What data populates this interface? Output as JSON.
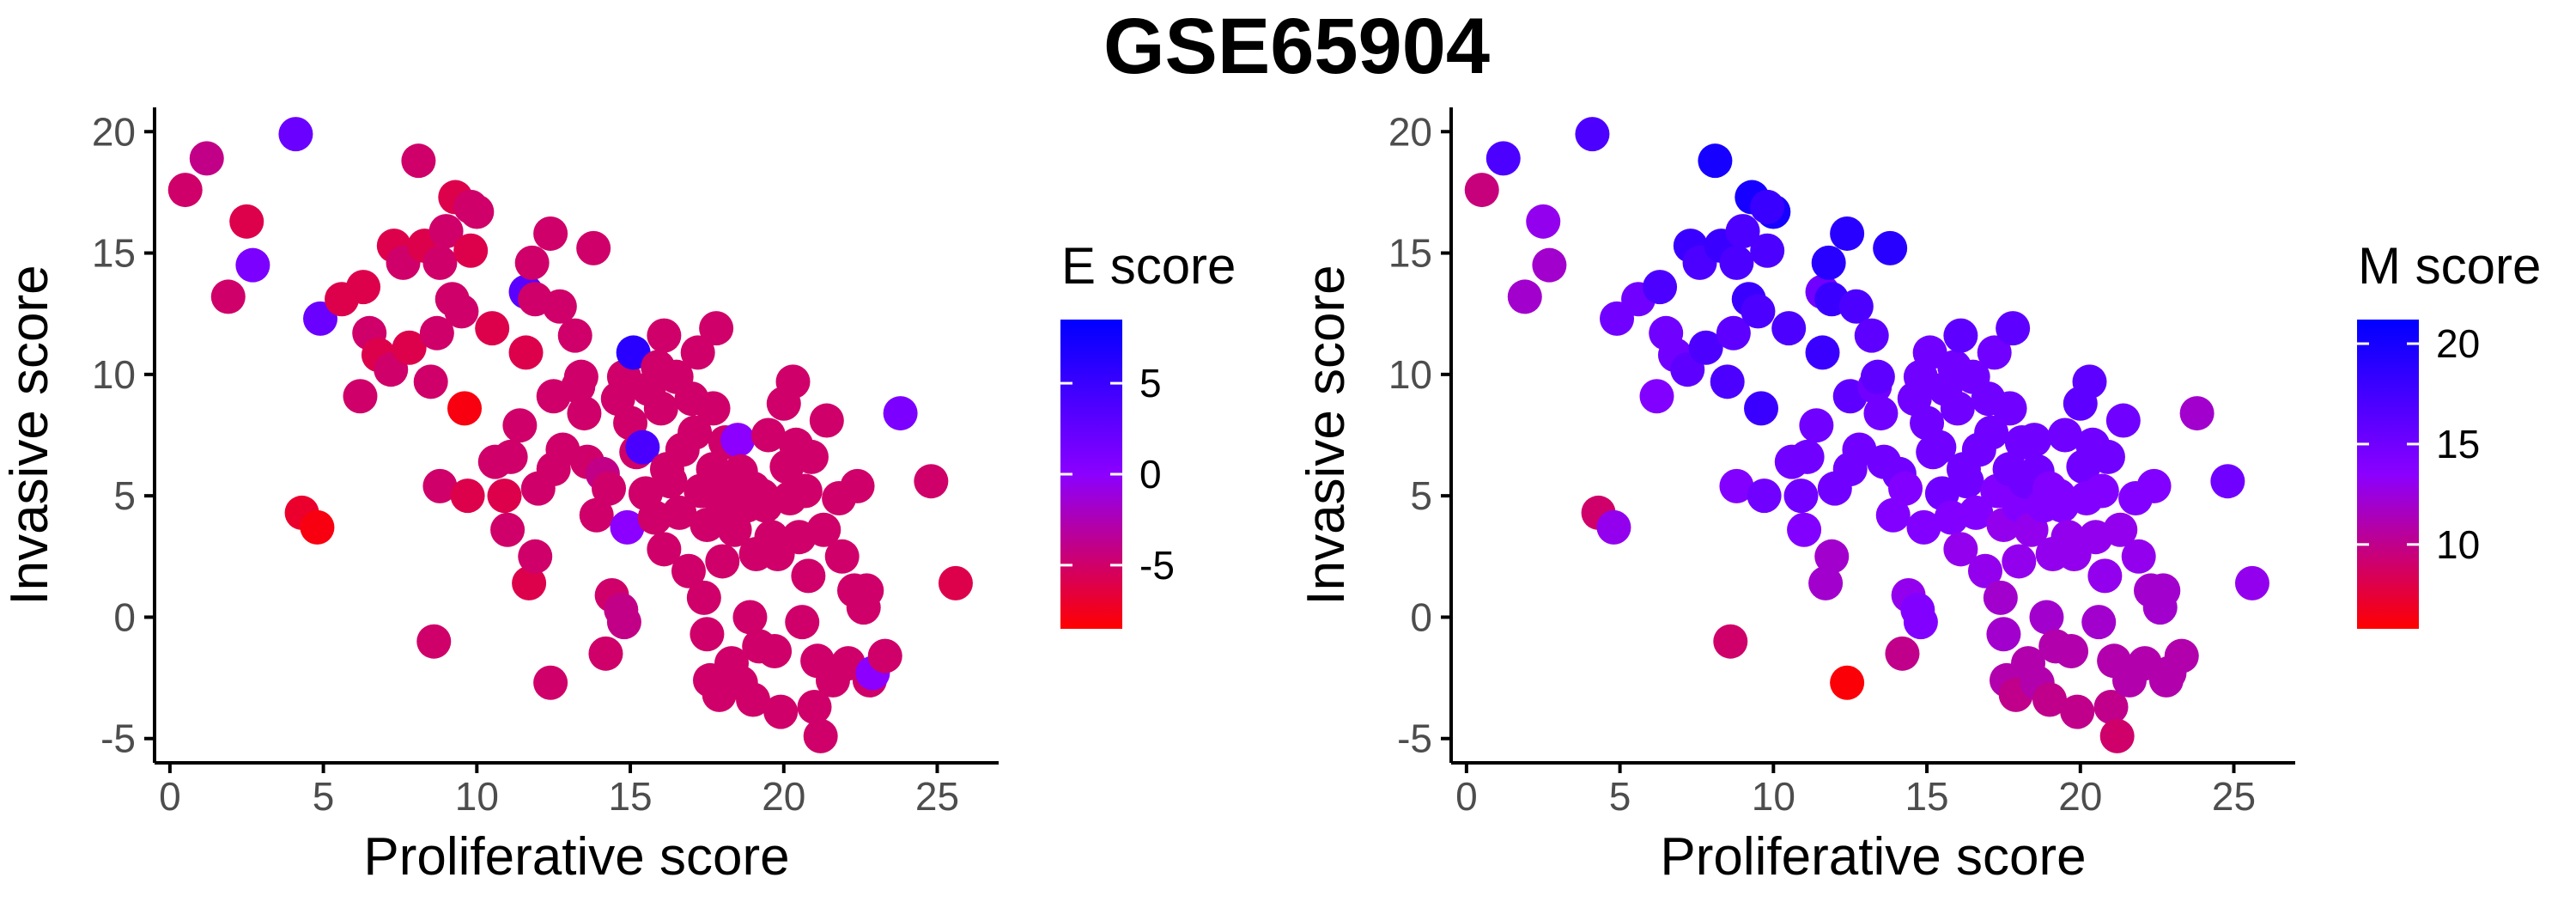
{
  "title": "GSE65904",
  "colors": {
    "low": "#ff0000",
    "mid": "#8b00ff",
    "high": "#0000ff",
    "axis": "#000000",
    "tick_text": "#4d4d4d"
  },
  "chart_data": [
    {
      "type": "scatter",
      "xlabel": "Proliferative score",
      "ylabel": "Invasive score",
      "xlim": [
        -0.5,
        27
      ],
      "ylim": [
        -6,
        21
      ],
      "xticks": [
        0,
        5,
        10,
        15,
        20,
        25
      ],
      "yticks": [
        -5,
        0,
        5,
        10,
        15,
        20
      ],
      "color_var": "e",
      "legend": {
        "title": "E score",
        "position": "right",
        "ticks": [
          5,
          0,
          -5
        ],
        "range": [
          -8.5,
          8.5
        ]
      }
    },
    {
      "type": "scatter",
      "xlabel": "Proliferative score",
      "ylabel": "Invasive score",
      "xlim": [
        -0.5,
        27
      ],
      "ylim": [
        -6,
        21
      ],
      "xticks": [
        0,
        5,
        10,
        15,
        20,
        25
      ],
      "yticks": [
        -5,
        0,
        5,
        10,
        15,
        20
      ],
      "color_var": "m",
      "legend": {
        "title": "M score",
        "position": "right",
        "ticks": [
          20,
          15,
          10
        ],
        "range": [
          5.8,
          21.2
        ]
      }
    }
  ],
  "points": [
    {
      "x": 0.5,
      "y": 17.6,
      "e": -5,
      "m": 9.5
    },
    {
      "x": 1.2,
      "y": 18.9,
      "e": -4,
      "m": 17
    },
    {
      "x": 1.9,
      "y": 13.2,
      "e": -5,
      "m": 12
    },
    {
      "x": 2.5,
      "y": 16.3,
      "e": -6,
      "m": 13
    },
    {
      "x": 2.7,
      "y": 14.5,
      "e": 1,
      "m": 12
    },
    {
      "x": 4.1,
      "y": 19.9,
      "e": 2,
      "m": 17
    },
    {
      "x": 4.9,
      "y": 12.3,
      "e": 2,
      "m": 15
    },
    {
      "x": 4.3,
      "y": 4.3,
      "e": -7,
      "m": 9
    },
    {
      "x": 4.8,
      "y": 3.7,
      "e": -8,
      "m": 13
    },
    {
      "x": 5.6,
      "y": 13.1,
      "e": -6,
      "m": 15
    },
    {
      "x": 6.3,
      "y": 13.6,
      "e": -6,
      "m": 17
    },
    {
      "x": 6.5,
      "y": 11.7,
      "e": -5,
      "m": 15
    },
    {
      "x": 6.8,
      "y": 10.8,
      "e": -6,
      "m": 15
    },
    {
      "x": 6.2,
      "y": 9.1,
      "e": -5,
      "m": 14
    },
    {
      "x": 7.3,
      "y": 15.3,
      "e": -6,
      "m": 18
    },
    {
      "x": 7.6,
      "y": 14.6,
      "e": -5,
      "m": 17
    },
    {
      "x": 7.2,
      "y": 10.2,
      "e": -5,
      "m": 16
    },
    {
      "x": 7.8,
      "y": 11.1,
      "e": -6,
      "m": 17
    },
    {
      "x": 8.1,
      "y": 18.8,
      "e": -5,
      "m": 20
    },
    {
      "x": 8.3,
      "y": 15.3,
      "e": -6,
      "m": 18
    },
    {
      "x": 8.5,
      "y": 9.7,
      "e": -5,
      "m": 17
    },
    {
      "x": 8.7,
      "y": 11.7,
      "e": -5,
      "m": 16
    },
    {
      "x": 8.8,
      "y": 14.6,
      "e": -5,
      "m": 17
    },
    {
      "x": 9.0,
      "y": 15.9,
      "e": -5,
      "m": 17
    },
    {
      "x": 9.2,
      "y": 13.1,
      "e": -5,
      "m": 18
    },
    {
      "x": 9.3,
      "y": 17.3,
      "e": -6,
      "m": 20
    },
    {
      "x": 9.5,
      "y": 12.6,
      "e": -5,
      "m": 17
    },
    {
      "x": 9.6,
      "y": 8.6,
      "e": -8,
      "m": 18
    },
    {
      "x": 9.8,
      "y": 15.1,
      "e": -6,
      "m": 17
    },
    {
      "x": 10.0,
      "y": 16.7,
      "e": -5,
      "m": 20
    },
    {
      "x": 9.8,
      "y": 16.9,
      "e": -5,
      "m": 18
    },
    {
      "x": 8.8,
      "y": 5.4,
      "e": -5,
      "m": 14
    },
    {
      "x": 9.7,
      "y": 5.0,
      "e": -6,
      "m": 15
    },
    {
      "x": 8.6,
      "y": -1.0,
      "e": -5,
      "m": 9
    },
    {
      "x": 10.5,
      "y": 11.9,
      "e": -6,
      "m": 17
    },
    {
      "x": 10.6,
      "y": 6.4,
      "e": -5,
      "m": 15
    },
    {
      "x": 10.9,
      "y": 5.0,
      "e": -6,
      "m": 15
    },
    {
      "x": 11.1,
      "y": 6.6,
      "e": -5,
      "m": 15
    },
    {
      "x": 11.0,
      "y": 3.6,
      "e": -5,
      "m": 14
    },
    {
      "x": 11.4,
      "y": 7.9,
      "e": -5,
      "m": 15
    },
    {
      "x": 11.6,
      "y": 13.4,
      "e": 3,
      "m": 15
    },
    {
      "x": 11.8,
      "y": 14.6,
      "e": -5,
      "m": 19
    },
    {
      "x": 11.6,
      "y": 10.9,
      "e": -6,
      "m": 18
    },
    {
      "x": 11.9,
      "y": 13.1,
      "e": -5,
      "m": 18
    },
    {
      "x": 12.0,
      "y": 5.3,
      "e": -5,
      "m": 15
    },
    {
      "x": 11.7,
      "y": 1.4,
      "e": -6,
      "m": 12
    },
    {
      "x": 11.9,
      "y": 2.5,
      "e": -5,
      "m": 12
    },
    {
      "x": 12.4,
      "y": 15.8,
      "e": -5,
      "m": 19
    },
    {
      "x": 12.7,
      "y": 12.8,
      "e": -5,
      "m": 17
    },
    {
      "x": 12.5,
      "y": 9.1,
      "e": -5,
      "m": 16
    },
    {
      "x": 12.5,
      "y": 6.1,
      "e": -5,
      "m": 15
    },
    {
      "x": 12.8,
      "y": 6.9,
      "e": -5,
      "m": 15
    },
    {
      "x": 12.4,
      "y": -2.7,
      "e": -5,
      "m": 6
    },
    {
      "x": 13.2,
      "y": 11.6,
      "e": -5,
      "m": 16
    },
    {
      "x": 13.3,
      "y": 9.5,
      "e": -5,
      "m": 15
    },
    {
      "x": 13.5,
      "y": 8.4,
      "e": -5,
      "m": 15
    },
    {
      "x": 13.6,
      "y": 6.4,
      "e": -5,
      "m": 15
    },
    {
      "x": 13.4,
      "y": 9.9,
      "e": -5,
      "m": 16
    },
    {
      "x": 13.8,
      "y": 15.2,
      "e": -5,
      "m": 19
    },
    {
      "x": 13.9,
      "y": 4.2,
      "e": -5,
      "m": 14
    },
    {
      "x": 14.1,
      "y": 5.9,
      "e": -4,
      "m": 15
    },
    {
      "x": 14.3,
      "y": 5.3,
      "e": -5,
      "m": 14
    },
    {
      "x": 14.2,
      "y": -1.5,
      "e": -5,
      "m": 10
    },
    {
      "x": 14.4,
      "y": 0.9,
      "e": -5,
      "m": 13
    },
    {
      "x": 14.6,
      "y": 9.0,
      "e": -5,
      "m": 15
    },
    {
      "x": 14.8,
      "y": 9.9,
      "e": -5,
      "m": 15
    },
    {
      "x": 14.7,
      "y": 0.3,
      "e": -4,
      "m": 14
    },
    {
      "x": 14.8,
      "y": -0.2,
      "e": -4,
      "m": 14
    },
    {
      "x": 14.9,
      "y": 3.7,
      "e": 0,
      "m": 14
    },
    {
      "x": 15.1,
      "y": 10.9,
      "e": 6,
      "m": 15
    },
    {
      "x": 15.0,
      "y": 8.0,
      "e": -5,
      "m": 15
    },
    {
      "x": 15.2,
      "y": 6.8,
      "e": -5,
      "m": 15
    },
    {
      "x": 15.4,
      "y": 7.0,
      "e": 4,
      "m": 15
    },
    {
      "x": 15.5,
      "y": 5.1,
      "e": -5,
      "m": 15
    },
    {
      "x": 15.6,
      "y": 9.4,
      "e": -5,
      "m": 15
    },
    {
      "x": 15.8,
      "y": 4.1,
      "e": -5,
      "m": 14
    },
    {
      "x": 15.9,
      "y": 10.3,
      "e": -5,
      "m": 15
    },
    {
      "x": 16.0,
      "y": 8.6,
      "e": -5,
      "m": 15
    },
    {
      "x": 16.1,
      "y": 11.6,
      "e": -5,
      "m": 16
    },
    {
      "x": 16.2,
      "y": 6.1,
      "e": -5,
      "m": 15
    },
    {
      "x": 16.3,
      "y": 5.6,
      "e": -5,
      "m": 15
    },
    {
      "x": 16.1,
      "y": 2.8,
      "e": -5,
      "m": 13
    },
    {
      "x": 16.5,
      "y": 9.9,
      "e": -5,
      "m": 15
    },
    {
      "x": 16.7,
      "y": 6.9,
      "e": -5,
      "m": 15
    },
    {
      "x": 16.6,
      "y": 4.3,
      "e": -5,
      "m": 14
    },
    {
      "x": 16.9,
      "y": 1.9,
      "e": -5,
      "m": 13
    },
    {
      "x": 17.0,
      "y": 9.0,
      "e": -5,
      "m": 15
    },
    {
      "x": 17.2,
      "y": 10.9,
      "e": -5,
      "m": 15
    },
    {
      "x": 17.1,
      "y": 7.6,
      "e": -5,
      "m": 15
    },
    {
      "x": 17.3,
      "y": 5.2,
      "e": -5,
      "m": 14
    },
    {
      "x": 17.4,
      "y": 0.8,
      "e": -5,
      "m": 12
    },
    {
      "x": 17.5,
      "y": 3.8,
      "e": -5,
      "m": 13
    },
    {
      "x": 17.5,
      "y": -0.7,
      "e": -5,
      "m": 12
    },
    {
      "x": 17.7,
      "y": 8.6,
      "e": -5,
      "m": 15
    },
    {
      "x": 17.7,
      "y": 6.1,
      "e": -5,
      "m": 15
    },
    {
      "x": 17.8,
      "y": 11.9,
      "e": -5,
      "m": 16
    },
    {
      "x": 17.6,
      "y": -2.6,
      "e": -5,
      "m": 11
    },
    {
      "x": 17.9,
      "y": -3.2,
      "e": -5,
      "m": 10
    },
    {
      "x": 18.0,
      "y": 4.6,
      "e": -5,
      "m": 14
    },
    {
      "x": 18.1,
      "y": 7.2,
      "e": -5,
      "m": 15
    },
    {
      "x": 18.0,
      "y": 2.3,
      "e": -5,
      "m": 13
    },
    {
      "x": 18.2,
      "y": 5.6,
      "e": -5,
      "m": 15
    },
    {
      "x": 18.3,
      "y": -1.9,
      "e": -5,
      "m": 11
    },
    {
      "x": 18.4,
      "y": 3.6,
      "e": -5,
      "m": 13
    },
    {
      "x": 18.5,
      "y": 7.3,
      "e": 0,
      "m": 15
    },
    {
      "x": 18.6,
      "y": 6.0,
      "e": -5,
      "m": 15
    },
    {
      "x": 18.6,
      "y": -2.7,
      "e": -5,
      "m": 11
    },
    {
      "x": 18.8,
      "y": 4.6,
      "e": -5,
      "m": 14
    },
    {
      "x": 18.9,
      "y": 0.0,
      "e": -5,
      "m": 12
    },
    {
      "x": 19.0,
      "y": 5.3,
      "e": -5,
      "m": 14
    },
    {
      "x": 19.0,
      "y": -3.4,
      "e": -5,
      "m": 10
    },
    {
      "x": 19.1,
      "y": 2.6,
      "e": -5,
      "m": 13
    },
    {
      "x": 19.2,
      "y": -1.2,
      "e": -5,
      "m": 11
    },
    {
      "x": 19.3,
      "y": 5.0,
      "e": -5,
      "m": 14
    },
    {
      "x": 19.4,
      "y": 4.6,
      "e": -5,
      "m": 14
    },
    {
      "x": 19.5,
      "y": 7.5,
      "e": -5,
      "m": 15
    },
    {
      "x": 19.6,
      "y": 3.3,
      "e": -5,
      "m": 13
    },
    {
      "x": 19.7,
      "y": -1.4,
      "e": -5,
      "m": 11
    },
    {
      "x": 19.8,
      "y": 2.6,
      "e": -5,
      "m": 13
    },
    {
      "x": 19.9,
      "y": -3.9,
      "e": -5,
      "m": 10
    },
    {
      "x": 20.0,
      "y": 8.8,
      "e": -5,
      "m": 16
    },
    {
      "x": 20.1,
      "y": 6.2,
      "e": -5,
      "m": 15
    },
    {
      "x": 20.2,
      "y": 4.9,
      "e": -5,
      "m": 14
    },
    {
      "x": 20.3,
      "y": 9.7,
      "e": -5,
      "m": 16
    },
    {
      "x": 20.4,
      "y": 7.1,
      "e": -5,
      "m": 15
    },
    {
      "x": 20.5,
      "y": 3.3,
      "e": -5,
      "m": 13
    },
    {
      "x": 20.6,
      "y": -0.2,
      "e": -5,
      "m": 12
    },
    {
      "x": 20.7,
      "y": 5.2,
      "e": -5,
      "m": 14
    },
    {
      "x": 20.8,
      "y": 1.7,
      "e": -5,
      "m": 13
    },
    {
      "x": 20.9,
      "y": 6.6,
      "e": -5,
      "m": 15
    },
    {
      "x": 21.0,
      "y": -3.7,
      "e": -5,
      "m": 10
    },
    {
      "x": 21.1,
      "y": -1.8,
      "e": -5,
      "m": 11
    },
    {
      "x": 21.2,
      "y": -4.9,
      "e": -5,
      "m": 9
    },
    {
      "x": 21.3,
      "y": 3.6,
      "e": -5,
      "m": 13
    },
    {
      "x": 21.4,
      "y": 8.1,
      "e": -5,
      "m": 15
    },
    {
      "x": 21.6,
      "y": -2.6,
      "e": -5,
      "m": 11
    },
    {
      "x": 21.8,
      "y": 4.9,
      "e": -5,
      "m": 14
    },
    {
      "x": 21.9,
      "y": 2.5,
      "e": -5,
      "m": 13
    },
    {
      "x": 22.1,
      "y": -1.9,
      "e": -5,
      "m": 11
    },
    {
      "x": 22.3,
      "y": 1.1,
      "e": -5,
      "m": 12
    },
    {
      "x": 22.4,
      "y": 5.4,
      "e": -5,
      "m": 14
    },
    {
      "x": 22.6,
      "y": 0.4,
      "e": -5,
      "m": 12
    },
    {
      "x": 22.8,
      "y": -2.6,
      "e": -5,
      "m": 11
    },
    {
      "x": 22.9,
      "y": -2.3,
      "e": 0,
      "m": 11
    },
    {
      "x": 22.7,
      "y": 1.1,
      "e": -5,
      "m": 12
    },
    {
      "x": 23.3,
      "y": -1.6,
      "e": -5,
      "m": 11
    },
    {
      "x": 23.8,
      "y": 8.4,
      "e": 1,
      "m": 12
    },
    {
      "x": 24.8,
      "y": 5.6,
      "e": -5,
      "m": 15
    },
    {
      "x": 25.6,
      "y": 1.4,
      "e": -6,
      "m": 13
    }
  ]
}
